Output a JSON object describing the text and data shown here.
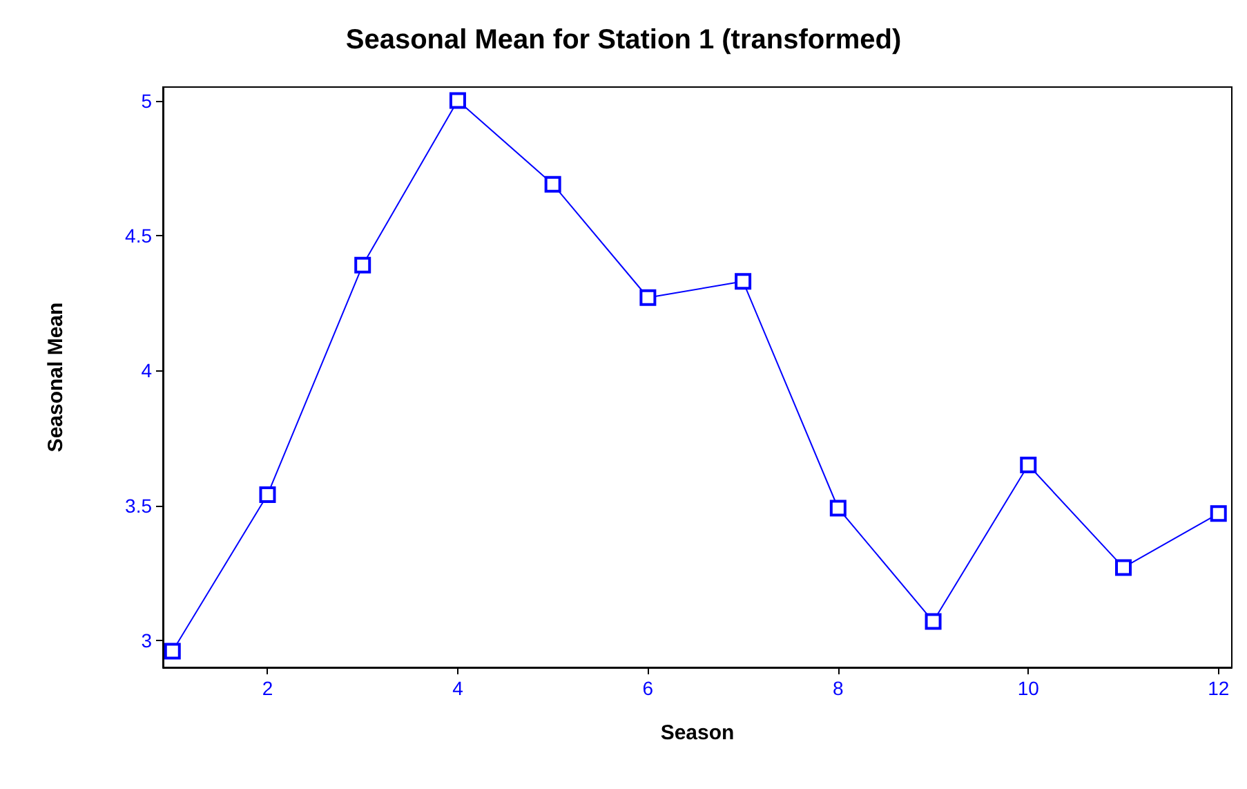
{
  "chart_data": {
    "type": "line",
    "title": "Seasonal Mean for Station 1 (transformed)",
    "xlabel": "Season",
    "ylabel": "Seasonal Mean",
    "x": [
      1,
      2,
      3,
      4,
      5,
      6,
      7,
      8,
      9,
      10,
      11,
      12
    ],
    "series": [
      {
        "color": "#0000ff",
        "values": [
          2.96,
          3.54,
          4.39,
          5.0,
          4.69,
          4.27,
          4.33,
          3.49,
          3.07,
          3.65,
          3.27,
          3.47
        ]
      }
    ],
    "xlim": [
      0.9,
      12.14
    ],
    "xticks": [
      2,
      4,
      6,
      8,
      10,
      12
    ],
    "ylim": [
      2.9,
      5.05
    ],
    "yticks": [
      3,
      3.5,
      4,
      4.5,
      5
    ],
    "grid": false,
    "marker": "square",
    "line_style": "solid"
  }
}
